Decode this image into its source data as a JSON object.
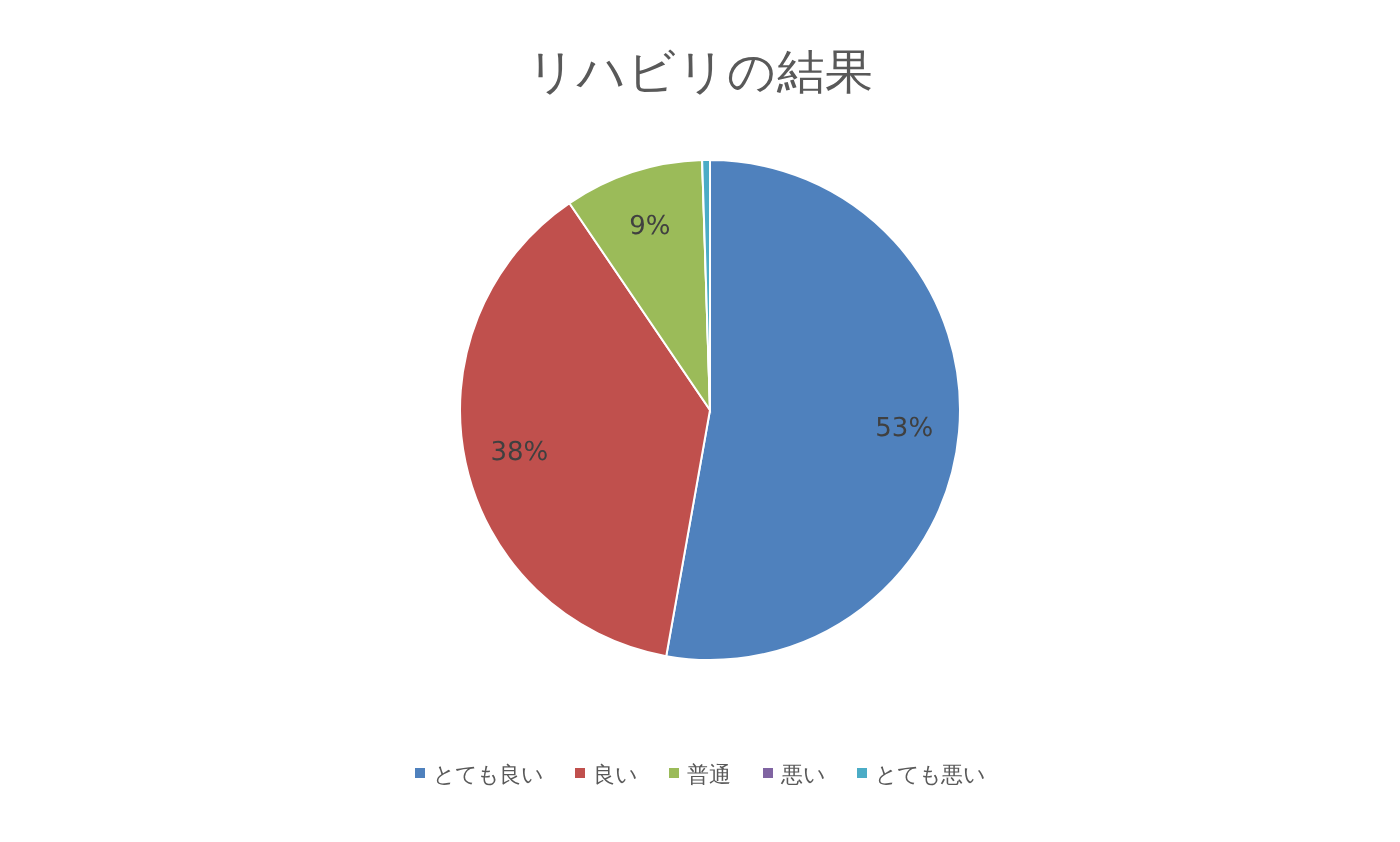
{
  "chart_data": {
    "type": "pie",
    "title": "リハビリの結果",
    "categories": [
      "とても良い",
      "良い",
      "普通",
      "悪い",
      "とても悪い"
    ],
    "values": [
      52.8,
      37.7,
      9.0,
      null,
      0.5
    ],
    "colors": [
      "#4f81bd",
      "#c0504d",
      "#9bbb59",
      "#8064a2",
      "#4bacc6"
    ],
    "value_labels": [
      "53%",
      "38%",
      "9%",
      null,
      null
    ],
    "legend": "bottom"
  }
}
